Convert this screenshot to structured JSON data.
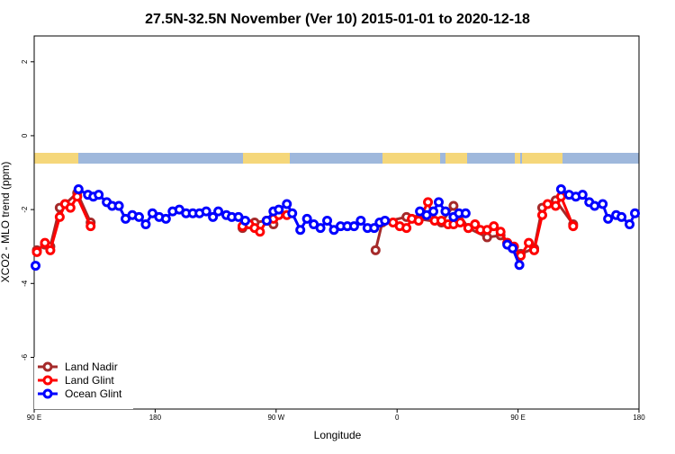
{
  "chart_data": {
    "type": "line",
    "title": "27.5N-32.5N November (Ver 10)   2015-01-01 to 2020-12-18",
    "x_label": "Longitude",
    "y_label": "XCO2 - MLO trend (ppm)",
    "xlim": [
      90,
      540
    ],
    "ylim": [
      -7.4,
      2.7
    ],
    "xticks": [
      {
        "value": 90,
        "label": "90 E"
      },
      {
        "value": 180,
        "label": "180"
      },
      {
        "value": 270,
        "label": "90 W"
      },
      {
        "value": 360,
        "label": "0"
      },
      {
        "value": 450,
        "label": "90 E"
      },
      {
        "value": 540,
        "label": "180"
      }
    ],
    "yticks": [
      -6,
      -4,
      -2,
      0,
      2
    ],
    "legend": "bottom-left",
    "series": [
      {
        "name": "Land Nadir",
        "color": "#a52a2a",
        "x": [
          92,
          98,
          102,
          109,
          113,
          122,
          132,
          null,
          245,
          250,
          254,
          263,
          268,
          272,
          null,
          344,
          349,
          367,
          376,
          393,
          402,
          413,
          427,
          437,
          442,
          452,
          462,
          468,
          478,
          491
        ],
        "values": [
          -3.1,
          -2.95,
          -3.0,
          -1.95,
          -1.85,
          -1.55,
          -2.35,
          null,
          -2.5,
          -2.4,
          -2.35,
          -2.3,
          -2.4,
          -2.05,
          null,
          -3.1,
          -2.35,
          -2.2,
          -2.25,
          -2.35,
          -1.9,
          -2.5,
          -2.75,
          -2.7,
          -2.9,
          -3.2,
          -3.05,
          -1.95,
          -1.75,
          -2.4
        ]
      },
      {
        "name": "Land Glint",
        "color": "#ff0000",
        "x": [
          92,
          98,
          102,
          109,
          113,
          117,
          122,
          132,
          null,
          245,
          250,
          254,
          258,
          263,
          268,
          272,
          278,
          null,
          357,
          362,
          367,
          371,
          376,
          383,
          388,
          393,
          398,
          402,
          407,
          413,
          418,
          422,
          427,
          432,
          437,
          442,
          447,
          452,
          458,
          462,
          468,
          472,
          478,
          482,
          491
        ],
        "values": [
          -3.15,
          -2.9,
          -3.1,
          -2.2,
          -1.85,
          -1.95,
          -1.65,
          -2.45,
          null,
          -2.45,
          -2.4,
          -2.5,
          -2.6,
          -2.3,
          -2.25,
          -2.15,
          -2.15,
          null,
          -2.35,
          -2.45,
          -2.5,
          -2.25,
          -2.3,
          -1.8,
          -2.3,
          -2.3,
          -2.4,
          -2.4,
          -2.35,
          -2.5,
          -2.4,
          -2.55,
          -2.55,
          -2.45,
          -2.6,
          -2.9,
          -3.0,
          -3.25,
          -2.9,
          -3.1,
          -2.15,
          -1.85,
          -1.9,
          -1.65,
          -2.45
        ]
      },
      {
        "name": "Ocean Glint",
        "color": "#0000ff",
        "x": [
          91,
          null,
          123,
          130,
          134,
          138,
          144,
          148,
          153,
          158,
          163,
          168,
          173,
          178,
          183,
          188,
          193,
          198,
          203,
          208,
          213,
          218,
          223,
          227,
          233,
          237,
          242,
          247,
          null,
          263,
          268,
          272,
          278,
          282,
          288,
          293,
          298,
          303,
          308,
          313,
          318,
          323,
          328,
          333,
          338,
          343,
          347,
          351,
          null,
          377,
          382,
          387,
          391,
          396,
          402,
          406,
          411,
          null,
          442,
          446,
          451,
          null,
          482,
          488,
          493,
          498,
          503,
          507,
          513,
          517,
          523,
          527,
          533,
          537
        ],
        "values": [
          -3.52,
          null,
          -1.45,
          -1.6,
          -1.65,
          -1.6,
          -1.8,
          -1.9,
          -1.9,
          -2.25,
          -2.15,
          -2.2,
          -2.4,
          -2.1,
          -2.2,
          -2.25,
          -2.05,
          -2.0,
          -2.1,
          -2.1,
          -2.1,
          -2.05,
          -2.2,
          -2.05,
          -2.15,
          -2.2,
          -2.2,
          -2.3,
          null,
          -2.3,
          -2.05,
          -2.0,
          -1.85,
          -2.1,
          -2.55,
          -2.25,
          -2.4,
          -2.5,
          -2.3,
          -2.55,
          -2.45,
          -2.45,
          -2.45,
          -2.3,
          -2.5,
          -2.5,
          -2.35,
          -2.3,
          null,
          -2.05,
          -2.15,
          -2.05,
          -1.8,
          -2.05,
          -2.2,
          -2.1,
          -2.1,
          null,
          -2.95,
          -3.05,
          -3.5,
          null,
          -1.45,
          -1.6,
          -1.65,
          -1.6,
          -1.8,
          -1.9,
          -1.85,
          -2.25,
          -2.15,
          -2.2,
          -2.4,
          -2.1
        ]
      }
    ]
  }
}
